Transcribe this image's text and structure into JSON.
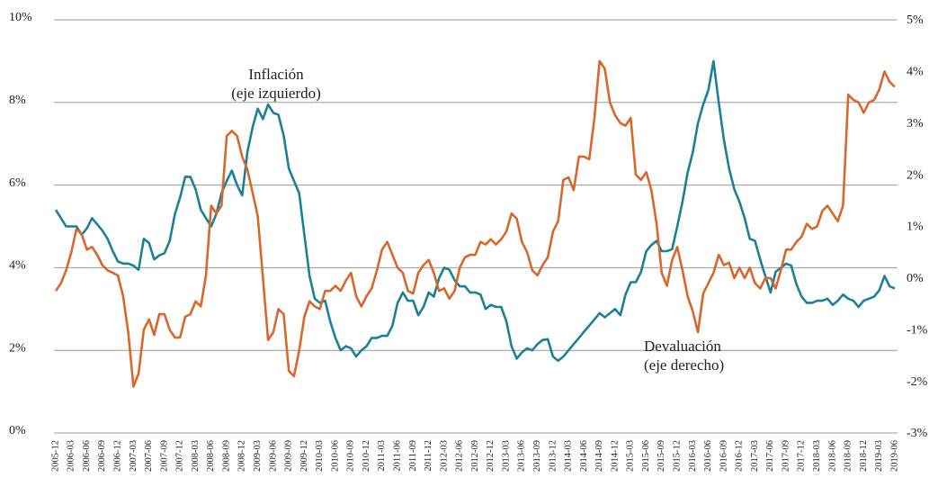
{
  "chart_data": {
    "type": "line",
    "categories": [
      "2005-12",
      null,
      null,
      "2006-03",
      null,
      null,
      "2006-06",
      null,
      null,
      "2006-09",
      null,
      null,
      "2006-12",
      null,
      null,
      "2007-03",
      null,
      null,
      "2007-06",
      null,
      null,
      "2007-09",
      null,
      null,
      "2007-12",
      null,
      null,
      "2008-03",
      null,
      null,
      "2008-06",
      null,
      null,
      "2008-09",
      null,
      null,
      "2008-12",
      null,
      null,
      "2009-03",
      null,
      null,
      "2009-06",
      null,
      null,
      "2009-09",
      null,
      null,
      "2009-12",
      null,
      null,
      "2010-03",
      null,
      null,
      "2010-06",
      null,
      null,
      "2010-09",
      null,
      null,
      "2010-12",
      null,
      null,
      "2011-03",
      null,
      null,
      "2011-06",
      null,
      null,
      "2011-09",
      null,
      null,
      "2011-12",
      null,
      null,
      "2012-03",
      null,
      null,
      "2012-06",
      null,
      null,
      "2012-09",
      null,
      null,
      "2012-12",
      null,
      null,
      "2013-03",
      null,
      null,
      "2013-06",
      null,
      null,
      "2013-09",
      null,
      null,
      "2013-12",
      null,
      null,
      "2014-03",
      null,
      null,
      "2014-06",
      null,
      null,
      "2014-09",
      null,
      null,
      "2014-12",
      null,
      null,
      "2015-03",
      null,
      null,
      "2015-06",
      null,
      null,
      "2015-09",
      null,
      null,
      "2015-12",
      null,
      null,
      "2016-03",
      null,
      null,
      "2016-06",
      null,
      null,
      "2016-09",
      null,
      null,
      "2016-12",
      null,
      null,
      "2017-03",
      null,
      null,
      "2017-06",
      null,
      null,
      "2017-09",
      null,
      null,
      "2017-12",
      null,
      null,
      "2018-03",
      null,
      null,
      "2018-06",
      null,
      null,
      "2018-09",
      null,
      null,
      "2018-12",
      null,
      null,
      "2019-03",
      null,
      null,
      "2019-06"
    ],
    "series": [
      {
        "color": "#1b8199",
        "values": [
          5.4,
          5.2,
          5.0,
          5.0,
          5.0,
          4.8,
          4.95,
          5.2,
          5.05,
          4.9,
          4.7,
          4.4,
          4.15,
          4.1,
          4.1,
          4.05,
          3.95,
          4.7,
          4.6,
          4.2,
          4.3,
          4.35,
          4.65,
          5.3,
          5.7,
          6.2,
          6.2,
          5.9,
          5.4,
          5.2,
          5.0,
          5.3,
          5.8,
          6.1,
          6.35,
          6.0,
          5.75,
          6.8,
          7.4,
          7.85,
          7.6,
          7.95,
          7.75,
          7.7,
          7.2,
          6.4,
          6.1,
          5.8,
          4.8,
          3.8,
          3.25,
          3.15,
          3.2,
          2.7,
          2.3,
          2.0,
          2.1,
          2.05,
          1.85,
          2.0,
          2.1,
          2.3,
          2.3,
          2.35,
          2.35,
          2.6,
          3.15,
          3.4,
          3.2,
          3.2,
          2.85,
          3.05,
          3.4,
          3.3,
          3.75,
          4.0,
          3.95,
          3.7,
          3.55,
          3.55,
          3.4,
          3.4,
          3.35,
          3.0,
          3.1,
          3.05,
          3.05,
          2.7,
          2.1,
          1.8,
          1.95,
          2.05,
          2.0,
          2.15,
          2.25,
          2.27,
          1.85,
          1.75,
          1.85,
          2.0,
          2.15,
          2.3,
          2.45,
          2.6,
          2.75,
          2.9,
          2.8,
          2.9,
          3.0,
          2.85,
          3.35,
          3.65,
          3.65,
          3.9,
          4.4,
          4.55,
          4.65,
          4.4,
          4.4,
          4.45,
          5.0,
          5.6,
          6.3,
          6.8,
          7.5,
          7.95,
          8.3,
          9.0,
          8.0,
          7.1,
          6.4,
          5.9,
          5.6,
          5.2,
          4.7,
          4.65,
          4.2,
          3.8,
          3.4,
          3.9,
          4.0,
          4.1,
          4.05,
          3.6,
          3.3,
          3.15,
          3.15,
          3.2,
          3.2,
          3.25,
          3.1,
          3.2,
          3.35,
          3.25,
          3.2,
          3.05,
          3.2,
          3.25,
          3.3,
          3.45,
          3.8,
          3.55,
          3.5
        ]
      },
      {
        "color": "#d9672c",
        "axis": "y2",
        "values": [
          -0.25,
          -0.1,
          0.15,
          0.5,
          0.95,
          0.85,
          0.55,
          0.6,
          0.45,
          0.25,
          0.15,
          0.1,
          0.05,
          -0.35,
          -1.05,
          -2.1,
          -1.85,
          -1.0,
          -0.8,
          -1.1,
          -0.7,
          -0.7,
          -1.0,
          -1.15,
          -1.15,
          -0.75,
          -0.7,
          -0.45,
          -0.55,
          0.05,
          1.4,
          1.25,
          1.4,
          2.75,
          2.85,
          2.75,
          2.35,
          2.1,
          1.65,
          1.2,
          0.0,
          -1.2,
          -1.05,
          -0.6,
          -0.7,
          -1.8,
          -1.9,
          -1.4,
          -0.75,
          -0.45,
          -0.55,
          -0.6,
          -0.25,
          -0.25,
          -0.15,
          -0.25,
          -0.05,
          0.1,
          -0.35,
          -0.55,
          -0.35,
          -0.2,
          0.15,
          0.55,
          0.7,
          0.45,
          0.2,
          0.1,
          -0.25,
          -0.3,
          0.1,
          0.25,
          0.35,
          0.1,
          -0.25,
          -0.2,
          -0.4,
          -0.25,
          0.2,
          0.4,
          0.45,
          0.45,
          0.7,
          0.65,
          0.75,
          0.65,
          0.75,
          0.9,
          1.25,
          1.15,
          0.7,
          0.5,
          0.15,
          0.05,
          0.25,
          0.4,
          0.9,
          1.1,
          1.9,
          1.95,
          1.7,
          2.35,
          2.35,
          2.3,
          3.1,
          4.2,
          4.05,
          3.4,
          3.15,
          3.0,
          2.95,
          3.1,
          2.0,
          1.9,
          2.05,
          1.7,
          1.05,
          0.1,
          -0.15,
          0.35,
          0.6,
          0.15,
          -0.35,
          -0.65,
          -1.05,
          -0.3,
          -0.1,
          0.1,
          0.45,
          0.25,
          0.3,
          0.0,
          0.2,
          0.0,
          0.2,
          -0.1,
          -0.2,
          0.0,
          0.0,
          -0.2,
          0.15,
          0.55,
          0.55,
          0.7,
          0.8,
          1.05,
          0.95,
          1.0,
          1.3,
          1.4,
          1.25,
          1.1,
          1.4,
          3.55,
          3.45,
          3.4,
          3.2,
          3.4,
          3.45,
          3.65,
          4.0,
          3.8,
          3.7
        ]
      }
    ],
    "annotations": [
      {
        "lines": [
          "Inflación",
          "(eje izquierdo)"
        ]
      },
      {
        "lines": [
          "Devaluación",
          "(eje derecho)"
        ]
      }
    ],
    "ylim": [
      0,
      10
    ],
    "yticks": [
      {
        "value": 0,
        "label": "0%"
      },
      {
        "value": 2,
        "label": "2%"
      },
      {
        "value": 4,
        "label": "4%"
      },
      {
        "value": 6,
        "label": "6%"
      },
      {
        "value": 8,
        "label": "8%"
      },
      {
        "value": 10,
        "label": "10%"
      }
    ],
    "y2lim": [
      -3,
      5
    ],
    "y2ticks": [
      {
        "value": -3,
        "label": "-3%"
      },
      {
        "value": -2,
        "label": "-2%"
      },
      {
        "value": -1,
        "label": "-1%"
      },
      {
        "value": 0,
        "label": "0%"
      },
      {
        "value": 1,
        "label": "1%"
      },
      {
        "value": 2,
        "label": "2%"
      },
      {
        "value": 3,
        "label": "3%"
      },
      {
        "value": 4,
        "label": "4%"
      },
      {
        "value": 5,
        "label": "5%"
      }
    ],
    "grid": true
  }
}
